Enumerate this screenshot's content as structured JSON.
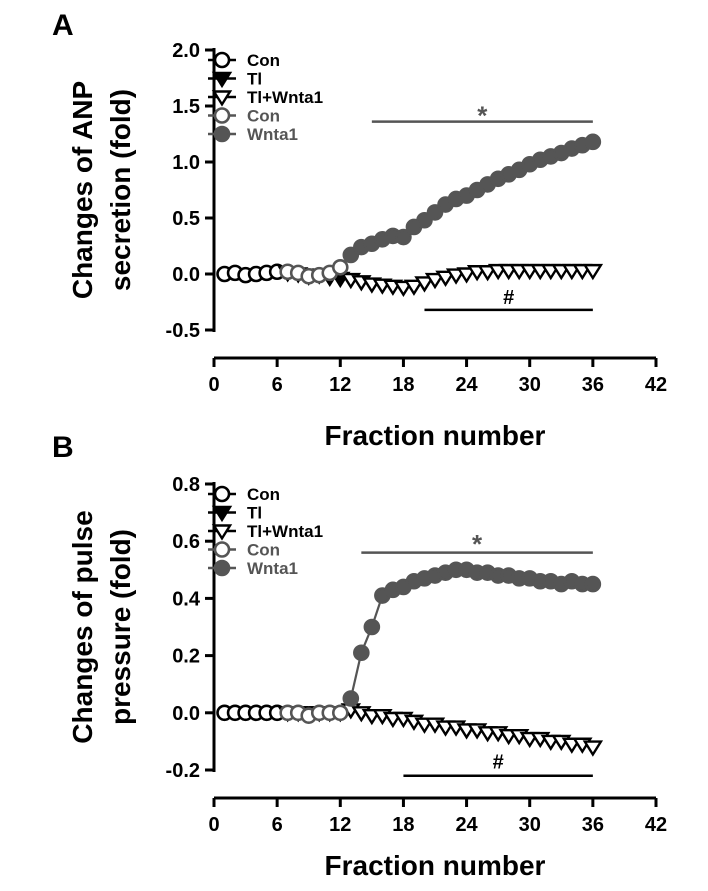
{
  "chart_data": [
    {
      "panel_label": "A",
      "type": "line",
      "xlabel": "Fraction number",
      "ylabel_lines": [
        "Changes of ANP",
        "secretion (fold)"
      ],
      "xlim": [
        0,
        42
      ],
      "ylim": [
        -0.5,
        2.0
      ],
      "xticks": [
        0,
        6,
        12,
        18,
        24,
        30,
        36,
        42
      ],
      "yticks": [
        -0.5,
        0.0,
        0.5,
        1.0,
        1.5,
        2.0
      ],
      "ytick_labels": [
        "-0.5",
        "0.0",
        "0.5",
        "1.0",
        "1.5",
        "2.0"
      ],
      "legend": [
        "Con",
        "Tl",
        "Tl+Wnta1",
        "Con",
        "Wnta1"
      ],
      "legend_placement": "top-left",
      "series": [
        {
          "name": "Con",
          "marker": "open-circle",
          "color": "#000000",
          "x": [
            1,
            2,
            3,
            4,
            5,
            6
          ],
          "y": [
            0.0,
            0.01,
            -0.01,
            0.0,
            0.01,
            0.02
          ]
        },
        {
          "name": "Tl",
          "marker": "filled-triangle-down",
          "color": "#000000",
          "x": [
            7,
            8,
            9,
            10,
            11,
            12
          ],
          "y": [
            0.01,
            0.0,
            -0.02,
            -0.01,
            -0.03,
            -0.04
          ]
        },
        {
          "name": "Tl+Wnta1",
          "marker": "open-triangle-down",
          "color": "#000000",
          "x": [
            13,
            14,
            15,
            16,
            17,
            18,
            19,
            20,
            21,
            22,
            23,
            24,
            25,
            26,
            27,
            28,
            29,
            30,
            31,
            32,
            33,
            34,
            35,
            36
          ],
          "y": [
            -0.05,
            -0.07,
            -0.09,
            -0.1,
            -0.11,
            -0.12,
            -0.11,
            -0.08,
            -0.05,
            -0.03,
            -0.01,
            0.0,
            0.02,
            0.02,
            0.03,
            0.03,
            0.03,
            0.03,
            0.03,
            0.03,
            0.03,
            0.03,
            0.03,
            0.03
          ]
        },
        {
          "name": "Con",
          "marker": "open-circle",
          "color": "#555555",
          "x": [
            7,
            8,
            9,
            10,
            11,
            12
          ],
          "y": [
            0.02,
            0.01,
            -0.02,
            -0.01,
            0.01,
            0.06
          ]
        },
        {
          "name": "Wnta1",
          "marker": "filled-circle",
          "color": "#555555",
          "x": [
            13,
            14,
            15,
            16,
            17,
            18,
            19,
            20,
            21,
            22,
            23,
            24,
            25,
            26,
            27,
            28,
            29,
            30,
            31,
            32,
            33,
            34,
            35,
            36
          ],
          "y": [
            0.17,
            0.24,
            0.27,
            0.31,
            0.34,
            0.33,
            0.42,
            0.48,
            0.55,
            0.62,
            0.67,
            0.7,
            0.75,
            0.8,
            0.85,
            0.89,
            0.93,
            0.98,
            1.02,
            1.05,
            1.08,
            1.12,
            1.15,
            1.18
          ]
        }
      ],
      "annotations": [
        {
          "text": "*",
          "x_start": 15,
          "x_end": 36,
          "y": 1.36,
          "label_y": 1.44,
          "color": "#555555"
        },
        {
          "text": "#",
          "x_start": 20,
          "x_end": 36,
          "y": -0.32,
          "label_y": -0.23,
          "color": "#000000"
        }
      ]
    },
    {
      "panel_label": "B",
      "type": "line",
      "xlabel": "Fraction number",
      "ylabel_lines": [
        "Changes of pulse",
        "pressure (fold)"
      ],
      "xlim": [
        0,
        42
      ],
      "ylim": [
        -0.2,
        0.8
      ],
      "xticks": [
        0,
        6,
        12,
        18,
        24,
        30,
        36,
        42
      ],
      "yticks": [
        -0.2,
        0.0,
        0.2,
        0.4,
        0.6,
        0.8
      ],
      "ytick_labels": [
        "-0.2",
        "0.0",
        "0.2",
        "0.4",
        "0.6",
        "0.8"
      ],
      "legend": [
        "Con",
        "Tl",
        "Tl+Wnta1",
        "Con",
        "Wnta1"
      ],
      "legend_placement": "top-left",
      "series": [
        {
          "name": "Con",
          "marker": "open-circle",
          "color": "#000000",
          "x": [
            1,
            2,
            3,
            4,
            5,
            6
          ],
          "y": [
            0.0,
            0.0,
            0.0,
            0.0,
            0.0,
            0.0
          ]
        },
        {
          "name": "Tl",
          "marker": "filled-triangle-down",
          "color": "#000000",
          "x": [
            7,
            8,
            9,
            10,
            11,
            12
          ],
          "y": [
            0.0,
            0.0,
            0.0,
            0.0,
            0.0,
            0.0
          ]
        },
        {
          "name": "Tl+Wnta1",
          "marker": "open-triangle-down",
          "color": "#000000",
          "x": [
            13,
            14,
            15,
            16,
            17,
            18,
            19,
            20,
            21,
            22,
            23,
            24,
            25,
            26,
            27,
            28,
            29,
            30,
            31,
            32,
            33,
            34,
            35,
            36
          ],
          "y": [
            0.01,
            0.0,
            -0.01,
            -0.01,
            -0.02,
            -0.02,
            -0.03,
            -0.04,
            -0.04,
            -0.05,
            -0.05,
            -0.06,
            -0.06,
            -0.07,
            -0.07,
            -0.08,
            -0.08,
            -0.09,
            -0.09,
            -0.1,
            -0.1,
            -0.11,
            -0.11,
            -0.12
          ]
        },
        {
          "name": "Con",
          "marker": "open-circle",
          "color": "#555555",
          "x": [
            7,
            8,
            9,
            10,
            11,
            12
          ],
          "y": [
            0.0,
            0.0,
            -0.01,
            0.0,
            0.0,
            0.0
          ]
        },
        {
          "name": "Wnta1",
          "marker": "filled-circle",
          "color": "#555555",
          "x": [
            13,
            14,
            15,
            16,
            17,
            18,
            19,
            20,
            21,
            22,
            23,
            24,
            25,
            26,
            27,
            28,
            29,
            30,
            31,
            32,
            33,
            34,
            35,
            36
          ],
          "y": [
            0.05,
            0.21,
            0.3,
            0.41,
            0.43,
            0.44,
            0.46,
            0.47,
            0.48,
            0.49,
            0.5,
            0.5,
            0.49,
            0.49,
            0.48,
            0.48,
            0.47,
            0.47,
            0.46,
            0.46,
            0.45,
            0.46,
            0.45,
            0.45
          ]
        }
      ],
      "annotations": [
        {
          "text": "*",
          "x_start": 14,
          "x_end": 36,
          "y": 0.56,
          "label_y": 0.6,
          "color": "#555555"
        },
        {
          "text": "#",
          "x_start": 18,
          "x_end": 36,
          "y": -0.22,
          "label_y": -0.18,
          "color": "#000000"
        }
      ]
    }
  ]
}
